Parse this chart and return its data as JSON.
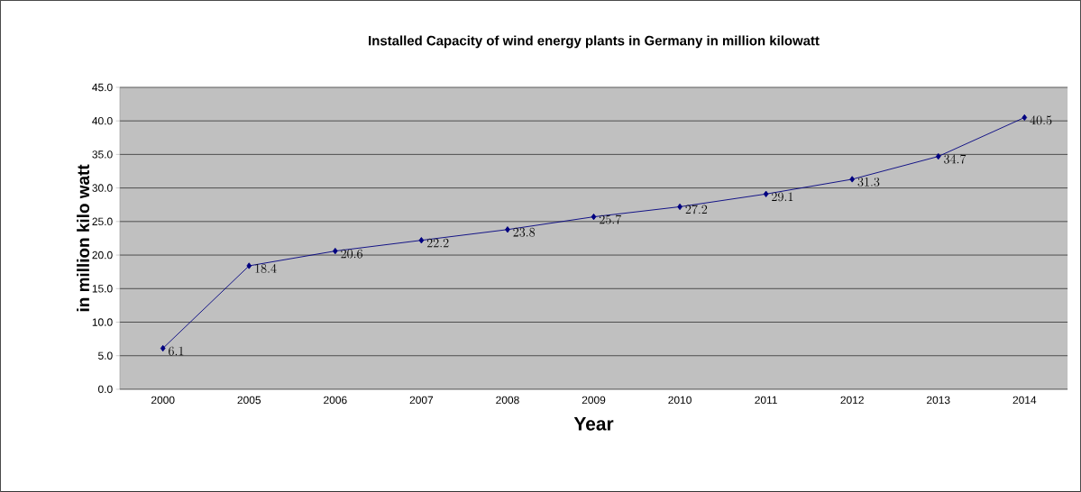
{
  "chart_data": {
    "type": "line",
    "title": "Installed Capacity of wind energy plants in Germany in million kilowatt",
    "xlabel": "Year",
    "ylabel": "in million kilo watt",
    "categories": [
      "2000",
      "2005",
      "2006",
      "2007",
      "2008",
      "2009",
      "2010",
      "2011",
      "2012",
      "2013",
      "2014"
    ],
    "series": [
      {
        "color": "#000080",
        "values": [
          6.1,
          18.4,
          20.6,
          22.2,
          23.8,
          25.7,
          27.2,
          29.1,
          31.3,
          34.7,
          40.5
        ]
      }
    ],
    "ylim": [
      0,
      45
    ],
    "yticks": [
      {
        "value": 0,
        "label": "0.0"
      },
      {
        "value": 5,
        "label": "5.0"
      },
      {
        "value": 10,
        "label": "10.0"
      },
      {
        "value": 15,
        "label": "15.0"
      },
      {
        "value": 20,
        "label": "20.0"
      },
      {
        "value": 25,
        "label": "25.0"
      },
      {
        "value": 30,
        "label": "30.0"
      },
      {
        "value": 35,
        "label": "35.0"
      },
      {
        "value": 40,
        "label": "40.0"
      },
      {
        "value": 45,
        "label": "45.0"
      }
    ],
    "grid": "y",
    "marker": "diamond",
    "line_style": "solid",
    "data_labels": true
  }
}
